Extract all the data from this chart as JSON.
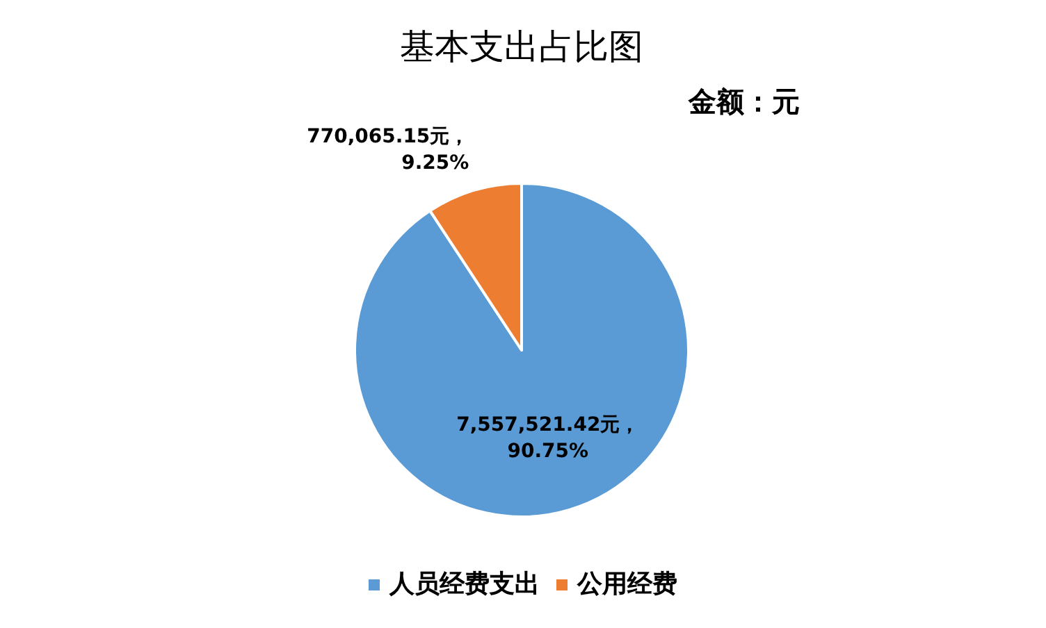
{
  "chart_data": {
    "type": "pie",
    "title": "基本支出占比图",
    "subtitle": "金额：元",
    "categories": [
      "人员经费支出",
      "公用经费"
    ],
    "values": [
      7557521.42,
      770065.15
    ],
    "colors": [
      "#5b9bd5",
      "#ed7d31"
    ],
    "value_labels": [
      "7,557,521.42元，\n90.75%",
      "770,065.15元，\n9.25%"
    ],
    "legend": "bottom"
  }
}
